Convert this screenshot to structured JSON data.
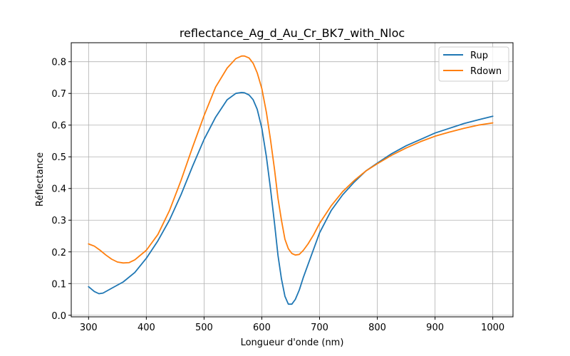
{
  "chart_data": {
    "type": "line",
    "title": "reflectance_Ag_d_Au_Cr_BK7_with_Nloc",
    "xlabel": "Longueur d'onde (nm)",
    "ylabel": "Réflectance",
    "xlim": [
      270,
      1035
    ],
    "ylim": [
      -0.005,
      0.86
    ],
    "xticks": [
      300,
      400,
      500,
      600,
      700,
      800,
      900,
      1000
    ],
    "yticks": [
      0.0,
      0.1,
      0.2,
      0.3,
      0.4,
      0.5,
      0.6,
      0.7,
      0.8
    ],
    "ytick_labels": [
      "0.0",
      "0.1",
      "0.2",
      "0.3",
      "0.4",
      "0.5",
      "0.6",
      "0.7",
      "0.8"
    ],
    "grid": true,
    "legend_position": "top-right",
    "series": [
      {
        "name": "Rup",
        "color": "#1f77b4",
        "x": [
          300,
          310,
          318,
          325,
          340,
          360,
          380,
          400,
          420,
          440,
          460,
          480,
          500,
          520,
          540,
          555,
          565,
          570,
          578,
          585,
          592,
          600,
          608,
          615,
          622,
          628,
          634,
          640,
          646,
          652,
          658,
          665,
          672,
          680,
          690,
          700,
          720,
          740,
          760,
          780,
          800,
          825,
          850,
          875,
          900,
          925,
          950,
          975,
          1000
        ],
        "values": [
          0.09,
          0.075,
          0.068,
          0.07,
          0.085,
          0.105,
          0.135,
          0.18,
          0.235,
          0.3,
          0.38,
          0.47,
          0.555,
          0.625,
          0.68,
          0.7,
          0.703,
          0.702,
          0.695,
          0.68,
          0.65,
          0.59,
          0.5,
          0.4,
          0.29,
          0.19,
          0.115,
          0.06,
          0.035,
          0.035,
          0.05,
          0.08,
          0.12,
          0.16,
          0.21,
          0.26,
          0.33,
          0.38,
          0.42,
          0.455,
          0.48,
          0.51,
          0.535,
          0.555,
          0.575,
          0.59,
          0.605,
          0.617,
          0.628
        ]
      },
      {
        "name": "Rdown",
        "color": "#ff7f0e",
        "x": [
          300,
          310,
          320,
          330,
          340,
          350,
          360,
          370,
          380,
          400,
          420,
          440,
          460,
          480,
          500,
          520,
          540,
          555,
          565,
          570,
          578,
          585,
          592,
          600,
          608,
          615,
          622,
          628,
          634,
          640,
          646,
          652,
          658,
          665,
          672,
          680,
          690,
          700,
          720,
          740,
          760,
          780,
          800,
          825,
          850,
          875,
          900,
          925,
          950,
          975,
          1000
        ],
        "values": [
          0.225,
          0.218,
          0.205,
          0.19,
          0.177,
          0.168,
          0.165,
          0.166,
          0.175,
          0.205,
          0.255,
          0.33,
          0.425,
          0.53,
          0.63,
          0.72,
          0.78,
          0.81,
          0.818,
          0.818,
          0.812,
          0.795,
          0.765,
          0.715,
          0.64,
          0.555,
          0.46,
          0.37,
          0.3,
          0.24,
          0.21,
          0.195,
          0.19,
          0.192,
          0.205,
          0.225,
          0.255,
          0.29,
          0.345,
          0.39,
          0.425,
          0.455,
          0.478,
          0.505,
          0.528,
          0.548,
          0.565,
          0.578,
          0.59,
          0.6,
          0.607
        ]
      }
    ]
  }
}
